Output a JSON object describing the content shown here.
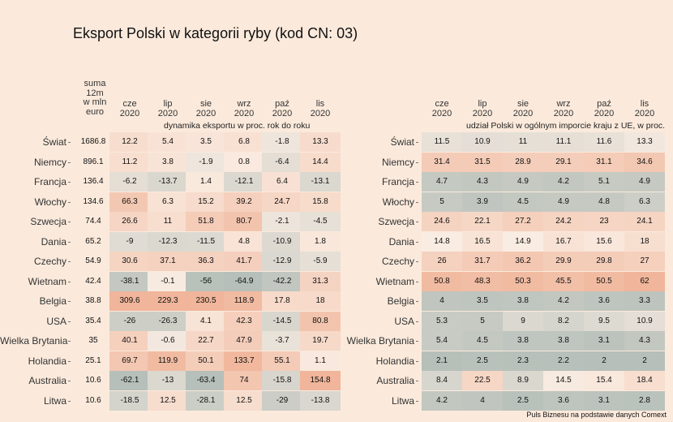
{
  "title": "Eksport Polski w kategorii ryby (kod CN: 03)",
  "caption": "Puls Biznesu na podstawie danych Comext",
  "colors": {
    "background": "#fbeadc",
    "positive_strong": "#f0b59a",
    "neutral": "#faede3",
    "negative_strong": "#b6bfb9"
  },
  "countries": [
    "Świat",
    "Niemcy",
    "Francja",
    "Włochy",
    "Szwecja",
    "Dania",
    "Czechy",
    "Wietnam",
    "Belgia",
    "USA",
    "Wielka Brytania",
    "Holandia",
    "Australia",
    "Litwa"
  ],
  "left_panel": {
    "sum_header": [
      "suma",
      "12m",
      "w mln",
      "euro"
    ],
    "month_headers": [
      [
        "cze",
        "2020"
      ],
      [
        "lip",
        "2020"
      ],
      [
        "sie",
        "2020"
      ],
      [
        "wrz",
        "2020"
      ],
      [
        "paź",
        "2020"
      ],
      [
        "lis",
        "2020"
      ]
    ],
    "subtitle": "dynamika eksportu w proc. rok do roku"
  },
  "right_panel": {
    "month_headers": [
      [
        "cze",
        "2020"
      ],
      [
        "lip",
        "2020"
      ],
      [
        "sie",
        "2020"
      ],
      [
        "wrz",
        "2020"
      ],
      [
        "paź",
        "2020"
      ],
      [
        "lis",
        "2020"
      ]
    ],
    "subtitle": "udział Polski w ogólnym imporcie kraju z UE, w proc."
  },
  "chart_data": [
    {
      "type": "heatmap",
      "title": "Eksport Polski w kategorii ryby (kod CN: 03)",
      "subtitle": "dynamika eksportu w proc. rok do roku",
      "rows": [
        "Świat",
        "Niemcy",
        "Francja",
        "Włochy",
        "Szwecja",
        "Dania",
        "Czechy",
        "Wietnam",
        "Belgia",
        "USA",
        "Wielka Brytania",
        "Holandia",
        "Australia",
        "Litwa"
      ],
      "sum_12m_mln_euro": [
        "1686.8",
        "896.1",
        "136.4",
        "134.6",
        "74.4",
        "65.2",
        "54.9",
        "42.4",
        "38.8",
        "35.4",
        "35",
        "25.1",
        "10.6",
        "10.6"
      ],
      "columns": [
        "cze 2020",
        "lip 2020",
        "sie 2020",
        "wrz 2020",
        "paź 2020",
        "lis 2020"
      ],
      "values": [
        [
          "12.2",
          "5.4",
          "3.5",
          "6.8",
          "-1.8",
          "13.3"
        ],
        [
          "11.2",
          "3.8",
          "-1.9",
          "0.8",
          "-6.4",
          "14.4"
        ],
        [
          "-6.2",
          "-13.7",
          "1.4",
          "-12.1",
          "6.4",
          "-13.1"
        ],
        [
          "66.3",
          "6.3",
          "15.2",
          "39.2",
          "24.7",
          "15.8"
        ],
        [
          "26.6",
          "11",
          "51.8",
          "80.7",
          "-2.1",
          "-4.5"
        ],
        [
          "-9",
          "-12.3",
          "-11.5",
          "4.8",
          "-10.9",
          "1.8"
        ],
        [
          "30.6",
          "37.1",
          "36.3",
          "41.7",
          "-12.9",
          "-5.9"
        ],
        [
          "-38.1",
          "-0.1",
          "-56",
          "-64.9",
          "-42.2",
          "31.3"
        ],
        [
          "309.6",
          "229.3",
          "230.5",
          "118.9",
          "17.8",
          "18"
        ],
        [
          "-26",
          "-26.3",
          "4.1",
          "42.3",
          "-14.5",
          "80.8"
        ],
        [
          "40.1",
          "-0.6",
          "22.7",
          "47.9",
          "-3.7",
          "19.7"
        ],
        [
          "69.7",
          "119.9",
          "50.1",
          "133.7",
          "55.1",
          "1.1"
        ],
        [
          "-62.1",
          "-13",
          "-63.4",
          "74",
          "-15.8",
          "154.8"
        ],
        [
          "-18.5",
          "12.5",
          "-28.1",
          "12.5",
          "-29",
          "-13.8"
        ]
      ]
    },
    {
      "type": "heatmap",
      "subtitle": "udział Polski w ogólnym imporcie kraju z UE, w proc.",
      "rows": [
        "Świat",
        "Niemcy",
        "Francja",
        "Włochy",
        "Szwecja",
        "Dania",
        "Czechy",
        "Wietnam",
        "Belgia",
        "USA",
        "Wielka Brytania",
        "Holandia",
        "Australia",
        "Litwa"
      ],
      "columns": [
        "cze 2020",
        "lip 2020",
        "sie 2020",
        "wrz 2020",
        "paź 2020",
        "lis 2020"
      ],
      "values": [
        [
          "11.5",
          "10.9",
          "11",
          "11.1",
          "11.6",
          "13.3"
        ],
        [
          "31.4",
          "31.5",
          "28.9",
          "29.1",
          "31.1",
          "34.6"
        ],
        [
          "4.7",
          "4.3",
          "4.9",
          "4.2",
          "5.1",
          "4.9"
        ],
        [
          "5",
          "3.9",
          "4.5",
          "4.9",
          "4.8",
          "6.3"
        ],
        [
          "24.6",
          "22.1",
          "27.2",
          "24.2",
          "23",
          "24.1"
        ],
        [
          "14.8",
          "16.5",
          "14.9",
          "16.7",
          "15.6",
          "18"
        ],
        [
          "26",
          "31.7",
          "36.2",
          "29.9",
          "29.8",
          "27"
        ],
        [
          "50.8",
          "48.3",
          "50.3",
          "45.5",
          "50.5",
          "62"
        ],
        [
          "4",
          "3.5",
          "3.8",
          "4.2",
          "3.6",
          "3.3"
        ],
        [
          "5.3",
          "5",
          "9",
          "8.2",
          "9.5",
          "10.9"
        ],
        [
          "5.4",
          "4.5",
          "3.8",
          "3.8",
          "3.1",
          "4.3"
        ],
        [
          "2.1",
          "2.5",
          "2.3",
          "2.2",
          "2",
          "2"
        ],
        [
          "8.4",
          "22.5",
          "8.9",
          "14.5",
          "15.4",
          "18.4"
        ],
        [
          "4.2",
          "4",
          "2.5",
          "3.6",
          "3.1",
          "2.8"
        ]
      ]
    }
  ]
}
